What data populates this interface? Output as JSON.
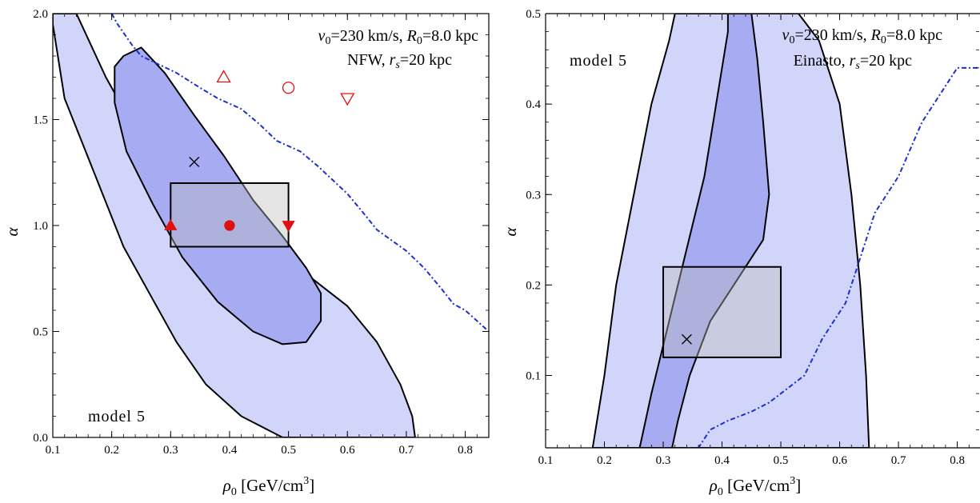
{
  "chart_data": [
    {
      "type": "contour",
      "panel": "left",
      "xlabel": "ρ0 [GeV/cm3]",
      "ylabel": "α",
      "xlim": [
        0.1,
        0.84
      ],
      "ylim": [
        0.0,
        2.0
      ],
      "xticks": [
        0.1,
        0.2,
        0.3,
        0.4,
        0.5,
        0.6,
        0.7,
        0.8
      ],
      "yticks": [
        0.0,
        0.5,
        1.0,
        1.5,
        2.0
      ],
      "xtick_labels": [
        "0.1",
        "0.2",
        "0.3",
        "0.4",
        "0.5",
        "0.6",
        "0.7",
        "0.8"
      ],
      "ytick_labels": [
        "0.0",
        "0.5",
        "1.0",
        "1.5",
        "2.0"
      ],
      "annotation_line1": "v0=230 km/s, R0=8.0 kpc",
      "annotation_line2": "NFW, rs=20 kpc",
      "model_label": "model 5",
      "colors": {
        "outer": "#d2d5fa",
        "inner": "#a6abf2",
        "box": "#bcbcbc",
        "boundary": "#1a2fd0",
        "markers": "#e01010"
      },
      "contour_outer": [
        [
          0.14,
          2.0
        ],
        [
          0.19,
          1.7
        ],
        [
          0.24,
          1.45
        ],
        [
          0.29,
          1.25
        ],
        [
          0.35,
          1.1
        ],
        [
          0.45,
          0.9
        ],
        [
          0.54,
          0.75
        ],
        [
          0.6,
          0.62
        ],
        [
          0.65,
          0.45
        ],
        [
          0.69,
          0.25
        ],
        [
          0.71,
          0.1
        ],
        [
          0.715,
          0.0
        ],
        [
          0.49,
          0.0
        ],
        [
          0.42,
          0.1
        ],
        [
          0.36,
          0.25
        ],
        [
          0.31,
          0.45
        ],
        [
          0.27,
          0.65
        ],
        [
          0.22,
          0.9
        ],
        [
          0.17,
          1.25
        ],
        [
          0.12,
          1.6
        ],
        [
          0.1,
          1.95
        ],
        [
          0.1,
          2.0
        ]
      ],
      "contour_inner": [
        [
          0.25,
          1.84
        ],
        [
          0.29,
          1.72
        ],
        [
          0.34,
          1.52
        ],
        [
          0.39,
          1.33
        ],
        [
          0.44,
          1.12
        ],
        [
          0.49,
          0.95
        ],
        [
          0.53,
          0.8
        ],
        [
          0.555,
          0.68
        ],
        [
          0.555,
          0.55
        ],
        [
          0.53,
          0.45
        ],
        [
          0.49,
          0.44
        ],
        [
          0.44,
          0.5
        ],
        [
          0.38,
          0.64
        ],
        [
          0.32,
          0.85
        ],
        [
          0.27,
          1.1
        ],
        [
          0.225,
          1.35
        ],
        [
          0.205,
          1.58
        ],
        [
          0.205,
          1.75
        ],
        [
          0.22,
          1.8
        ],
        [
          0.25,
          1.84
        ]
      ],
      "box": {
        "x": [
          0.3,
          0.5
        ],
        "y": [
          0.9,
          1.2
        ]
      },
      "boundary": [
        [
          0.2,
          2.0
        ],
        [
          0.21,
          1.95
        ],
        [
          0.235,
          1.85
        ],
        [
          0.25,
          1.8
        ],
        [
          0.28,
          1.76
        ],
        [
          0.31,
          1.72
        ],
        [
          0.35,
          1.65
        ],
        [
          0.38,
          1.6
        ],
        [
          0.42,
          1.55
        ],
        [
          0.45,
          1.48
        ],
        [
          0.48,
          1.4
        ],
        [
          0.52,
          1.35
        ],
        [
          0.55,
          1.28
        ],
        [
          0.6,
          1.15
        ],
        [
          0.63,
          1.05
        ],
        [
          0.65,
          0.98
        ],
        [
          0.7,
          0.88
        ],
        [
          0.73,
          0.8
        ],
        [
          0.76,
          0.7
        ],
        [
          0.78,
          0.63
        ],
        [
          0.8,
          0.6
        ],
        [
          0.84,
          0.5
        ]
      ],
      "best_fit": {
        "x": 0.34,
        "y": 1.3
      },
      "markers": [
        {
          "shape": "triangle-up",
          "filled": true,
          "x": 0.3,
          "y": 1.0
        },
        {
          "shape": "circle",
          "filled": true,
          "x": 0.4,
          "y": 1.0
        },
        {
          "shape": "triangle-down",
          "filled": true,
          "x": 0.5,
          "y": 1.0
        },
        {
          "shape": "triangle-up",
          "filled": false,
          "x": 0.39,
          "y": 1.7
        },
        {
          "shape": "circle",
          "filled": false,
          "x": 0.5,
          "y": 1.65
        },
        {
          "shape": "triangle-down",
          "filled": false,
          "x": 0.6,
          "y": 1.6
        }
      ]
    },
    {
      "type": "contour",
      "panel": "right",
      "xlabel": "ρ0 [GeV/cm3]",
      "ylabel": "α",
      "xlim": [
        0.1,
        0.84
      ],
      "ylim": [
        0.02,
        0.5
      ],
      "xticks": [
        0.1,
        0.2,
        0.3,
        0.4,
        0.5,
        0.6,
        0.7,
        0.8
      ],
      "yticks": [
        0.1,
        0.2,
        0.3,
        0.4,
        0.5
      ],
      "xtick_labels": [
        "0.1",
        "0.2",
        "0.3",
        "0.4",
        "0.5",
        "0.6",
        "0.7",
        "0.8"
      ],
      "ytick_labels": [
        "0.1",
        "0.2",
        "0.3",
        "0.4",
        "0.5"
      ],
      "annotation_line1": "v0=230 km/s, R0=8.0 kpc",
      "annotation_line2": "Einasto, rs=20 kpc",
      "model_label": "model 5",
      "colors": {
        "outer": "#d2d5fa",
        "inner": "#a6abf2",
        "box": "#bcbcbc",
        "boundary": "#1a2fd0"
      },
      "contour_outer": [
        [
          0.18,
          0.02
        ],
        [
          0.2,
          0.1
        ],
        [
          0.22,
          0.2
        ],
        [
          0.25,
          0.3
        ],
        [
          0.28,
          0.4
        ],
        [
          0.31,
          0.47
        ],
        [
          0.32,
          0.5
        ],
        [
          0.53,
          0.5
        ],
        [
          0.565,
          0.47
        ],
        [
          0.6,
          0.4
        ],
        [
          0.62,
          0.3
        ],
        [
          0.635,
          0.2
        ],
        [
          0.645,
          0.1
        ],
        [
          0.65,
          0.02
        ]
      ],
      "contour_inner": [
        [
          0.26,
          0.02
        ],
        [
          0.28,
          0.08
        ],
        [
          0.31,
          0.16
        ],
        [
          0.34,
          0.24
        ],
        [
          0.37,
          0.32
        ],
        [
          0.39,
          0.4
        ],
        [
          0.41,
          0.48
        ],
        [
          0.41,
          0.5
        ],
        [
          0.45,
          0.5
        ],
        [
          0.46,
          0.45
        ],
        [
          0.47,
          0.38
        ],
        [
          0.48,
          0.3
        ],
        [
          0.47,
          0.25
        ],
        [
          0.42,
          0.2
        ],
        [
          0.38,
          0.16
        ],
        [
          0.345,
          0.1
        ],
        [
          0.325,
          0.05
        ],
        [
          0.315,
          0.02
        ]
      ],
      "box": {
        "x": [
          0.3,
          0.5
        ],
        "y": [
          0.12,
          0.22
        ]
      },
      "boundary": [
        [
          0.34,
          0.02
        ],
        [
          0.36,
          0.02
        ],
        [
          0.38,
          0.04
        ],
        [
          0.41,
          0.05
        ],
        [
          0.45,
          0.06
        ],
        [
          0.48,
          0.07
        ],
        [
          0.5,
          0.08
        ],
        [
          0.52,
          0.09
        ],
        [
          0.54,
          0.1
        ],
        [
          0.555,
          0.12
        ],
        [
          0.57,
          0.14
        ],
        [
          0.59,
          0.16
        ],
        [
          0.61,
          0.18
        ],
        [
          0.63,
          0.22
        ],
        [
          0.64,
          0.24
        ],
        [
          0.66,
          0.28
        ],
        [
          0.68,
          0.3
        ],
        [
          0.7,
          0.32
        ],
        [
          0.72,
          0.35
        ],
        [
          0.74,
          0.38
        ],
        [
          0.76,
          0.4
        ],
        [
          0.78,
          0.42
        ],
        [
          0.8,
          0.44
        ],
        [
          0.84,
          0.44
        ],
        [
          0.84,
          0.5
        ]
      ],
      "best_fit": {
        "x": 0.34,
        "y": 0.14
      },
      "markers": []
    }
  ]
}
